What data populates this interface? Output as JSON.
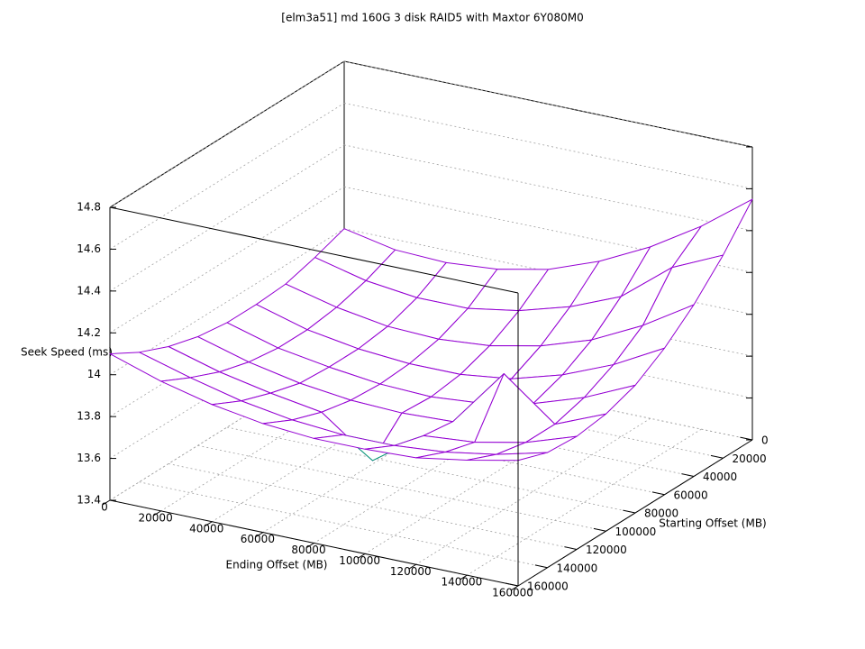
{
  "chart_data": {
    "type": "surface",
    "title": "[elm3a51] md 160G 3 disk RAID5 with Maxtor 6Y080M0",
    "x_label": "Ending Offset (MB)",
    "y_label": "Starting Offset (MB)",
    "z_label": "Seek Speed (ms)",
    "x": [
      0,
      20000,
      40000,
      60000,
      80000,
      100000,
      120000,
      140000,
      160000
    ],
    "y": [
      0,
      20000,
      40000,
      60000,
      80000,
      100000,
      120000,
      140000,
      160000
    ],
    "z": [
      [
        14.0,
        13.95,
        13.94,
        13.96,
        14.01,
        14.1,
        14.22,
        14.37,
        14.55
      ],
      [
        13.95,
        13.89,
        13.86,
        13.86,
        13.9,
        13.97,
        14.07,
        14.26,
        14.37
      ],
      [
        13.91,
        13.85,
        13.81,
        13.8,
        13.82,
        13.87,
        13.95,
        14.07,
        14.22
      ],
      [
        13.9,
        13.83,
        13.79,
        13.77,
        13.77,
        13.8,
        13.87,
        13.97,
        14.1
      ],
      [
        13.9,
        13.83,
        13.79,
        13.76,
        13.75,
        13.77,
        13.82,
        13.9,
        14.01
      ],
      [
        13.92,
        13.85,
        13.8,
        13.77,
        13.76,
        13.77,
        14.05,
        13.86,
        13.96
      ],
      [
        13.96,
        13.89,
        13.84,
        13.8,
        13.62,
        13.79,
        13.81,
        13.86,
        13.94
      ],
      [
        14.02,
        13.95,
        13.89,
        13.85,
        13.83,
        13.83,
        13.85,
        13.89,
        13.95
      ],
      [
        14.1,
        14.02,
        13.96,
        13.92,
        13.9,
        13.9,
        13.91,
        13.95,
        14.0
      ]
    ],
    "xlim": [
      0,
      160000
    ],
    "ylim": [
      0,
      160000
    ],
    "zlim": [
      13.4,
      14.8
    ],
    "xticks": [
      0,
      20000,
      40000,
      60000,
      80000,
      100000,
      120000,
      140000,
      160000
    ],
    "yticks": [
      0,
      20000,
      40000,
      60000,
      80000,
      100000,
      120000,
      140000,
      160000
    ],
    "zticks": [
      13.4,
      13.6,
      13.8,
      14,
      14.2,
      14.4,
      14.6,
      14.8
    ],
    "grid": true,
    "color": "#9400d3",
    "underside_color": "#009e73"
  }
}
